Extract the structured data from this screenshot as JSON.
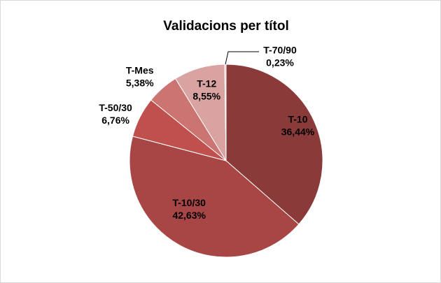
{
  "chart_data": {
    "type": "pie",
    "title": "Validacions per títol",
    "categories": [
      "T-10",
      "T-10/30",
      "T-50/30",
      "T-Mes",
      "T-12",
      "T-70/90"
    ],
    "values": [
      36.44,
      42.63,
      6.76,
      5.38,
      8.55,
      0.23
    ],
    "value_labels": [
      "36,44%",
      "42,63%",
      "6,76%",
      "5,38%",
      "8,55%",
      "0,23%"
    ],
    "colors": [
      "#8b3a3a",
      "#a84545",
      "#c0504d",
      "#cc7472",
      "#d9a3a2",
      "#e6c4c3"
    ]
  }
}
